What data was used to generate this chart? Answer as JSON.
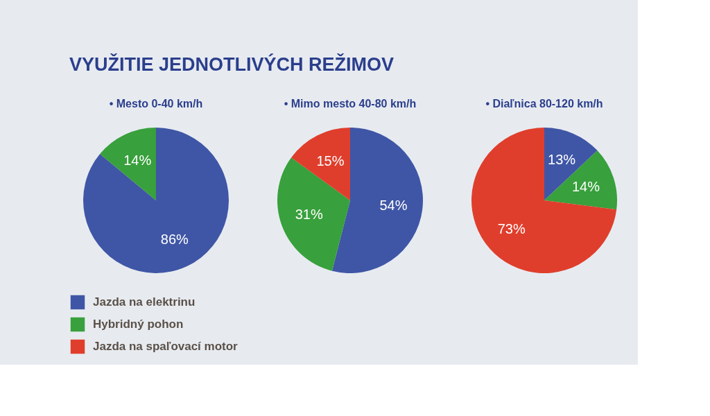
{
  "chart_data": {
    "type": "pie",
    "title": "VYUŽITIE JEDNOTLIVÝCH REŽIMOV",
    "categories": [
      "Jazda na elektrinu",
      "Hybridný pohon",
      "Jazda na spaľovací motor"
    ],
    "colors": [
      "#3f56a6",
      "#38a03c",
      "#e03e2c"
    ],
    "series": [
      {
        "name": "• Mesto 0-40 km/h",
        "values": [
          86,
          14,
          null
        ],
        "value_labels": [
          "86%",
          "14%",
          null
        ]
      },
      {
        "name": "• Mimo mesto 40-80 km/h",
        "values": [
          54,
          31,
          15
        ],
        "value_labels": [
          "54%",
          "31%",
          "15%"
        ]
      },
      {
        "name": "• Diaľnica 80-120 km/h",
        "values": [
          13,
          14,
          73
        ],
        "value_labels": [
          "13%",
          "14%",
          "73%"
        ]
      }
    ],
    "legend": "bottom left"
  }
}
